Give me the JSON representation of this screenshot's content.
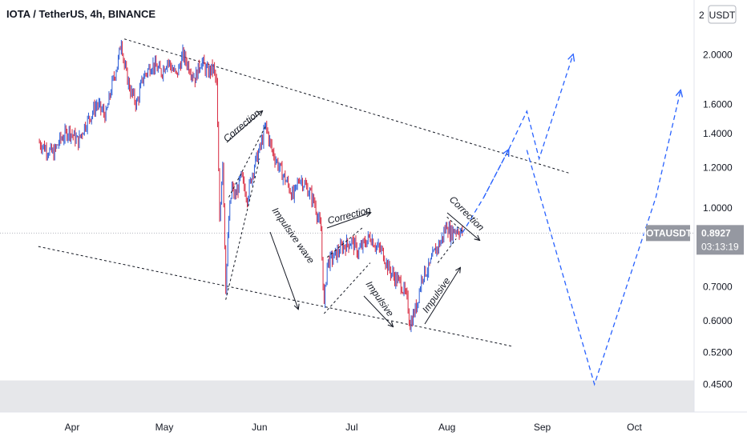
{
  "chart_data": {
    "type": "candlestick",
    "title": "IOTA / TetherUS, 4h, BINANCE",
    "currency": "USDT",
    "scale": "log",
    "ylim": [
      0.43,
      2.1
    ],
    "y_ticks": [
      {
        "value": 2.0,
        "label": "2.0000"
      },
      {
        "value": 1.6,
        "label": "1.6000"
      },
      {
        "value": 1.4,
        "label": "1.4000"
      },
      {
        "value": 1.2,
        "label": "1.2000"
      },
      {
        "value": 1.0,
        "label": "1.0000"
      },
      {
        "value": 0.7,
        "label": "0.7000"
      },
      {
        "value": 0.6,
        "label": "0.6000"
      },
      {
        "value": 0.52,
        "label": "0.5200"
      },
      {
        "value": 0.45,
        "label": "0.4500"
      }
    ],
    "x_ticks": [
      "Apr",
      "May",
      "Jun",
      "Jul",
      "Aug",
      "Sep",
      "Oct"
    ],
    "symbol": "IOTAUSDT",
    "last_price": "0.8927",
    "countdown": "03:13:19",
    "top_clipped_label": "2",
    "price_path": [
      [
        "Mar 21",
        1.35
      ],
      [
        "Mar 24",
        1.3
      ],
      [
        "Mar 26",
        1.28
      ],
      [
        "Mar 28",
        1.36
      ],
      [
        "Mar 31",
        1.42
      ],
      [
        "Apr 3",
        1.35
      ],
      [
        "Apr 5",
        1.45
      ],
      [
        "Apr 7",
        1.52
      ],
      [
        "Apr 9",
        1.6
      ],
      [
        "Apr 12",
        1.52
      ],
      [
        "Apr 14",
        1.75
      ],
      [
        "Apr 16",
        1.95
      ],
      [
        "Apr 17",
        2.15
      ],
      [
        "Apr 18",
        1.9
      ],
      [
        "Apr 20",
        1.7
      ],
      [
        "Apr 22",
        1.6
      ],
      [
        "Apr 24",
        1.8
      ],
      [
        "Apr 27",
        1.92
      ],
      [
        "Apr 30",
        1.85
      ],
      [
        "May 2",
        1.95
      ],
      [
        "May 5",
        1.82
      ],
      [
        "May 7",
        2.0
      ],
      [
        "May 9",
        1.9
      ],
      [
        "May 11",
        1.8
      ],
      [
        "May 13",
        1.95
      ],
      [
        "May 15",
        1.85
      ],
      [
        "May 17",
        1.88
      ],
      [
        "May 18",
        1.75
      ],
      [
        "May 19",
        0.95
      ],
      [
        "May 20",
        1.25
      ],
      [
        "May 21",
        0.7
      ],
      [
        "May 22",
        0.95
      ],
      [
        "May 23",
        1.1
      ],
      [
        "May 24",
        1.05
      ],
      [
        "May 26",
        1.15
      ],
      [
        "May 28",
        1.05
      ],
      [
        "May 30",
        1.2
      ],
      [
        "Jun 1",
        1.3
      ],
      [
        "Jun 3",
        1.45
      ],
      [
        "Jun 5",
        1.3
      ],
      [
        "Jun 8",
        1.18
      ],
      [
        "Jun 10",
        1.12
      ],
      [
        "Jun 12",
        1.05
      ],
      [
        "Jun 14",
        1.15
      ],
      [
        "Jun 17",
        1.08
      ],
      [
        "Jun 19",
        1.02
      ],
      [
        "Jun 21",
        0.9
      ],
      [
        "Jun 22",
        0.64
      ],
      [
        "Jun 23",
        0.78
      ],
      [
        "Jun 25",
        0.8
      ],
      [
        "Jun 28",
        0.84
      ],
      [
        "Jul 1",
        0.86
      ],
      [
        "Jul 3",
        0.82
      ],
      [
        "Jul 5",
        0.85
      ],
      [
        "Jul 7",
        0.88
      ],
      [
        "Jul 9",
        0.84
      ],
      [
        "Jul 11",
        0.82
      ],
      [
        "Jul 13",
        0.76
      ],
      [
        "Jul 15",
        0.73
      ],
      [
        "Jul 17",
        0.71
      ],
      [
        "Jul 19",
        0.66
      ],
      [
        "Jul 20",
        0.59
      ],
      [
        "Jul 22",
        0.64
      ],
      [
        "Jul 24",
        0.74
      ],
      [
        "Jul 26",
        0.76
      ],
      [
        "Jul 28",
        0.82
      ],
      [
        "Jul 30",
        0.86
      ],
      [
        "Aug 1",
        0.93
      ],
      [
        "Aug 2",
        0.89
      ],
      [
        "Aug 4",
        0.91
      ],
      [
        "Aug 6",
        0.8927
      ]
    ],
    "projection": [
      [
        "Aug 6",
        0.8927
      ],
      [
        "Aug 13",
        1.05
      ],
      [
        "Aug 21",
        1.3
      ],
      [
        "Aug 27",
        1.55
      ],
      [
        "Aug 31",
        1.25
      ],
      [
        "Sep 11",
        2.0
      ]
    ],
    "projection_alt": [
      [
        "Aug 27",
        1.3
      ],
      [
        "Sep 18",
        0.45
      ],
      [
        "Oct 8",
        1.05
      ],
      [
        "Oct 16",
        1.7
      ]
    ],
    "trendlines": [
      {
        "from": [
          "Apr 18",
          2.15
        ],
        "to": [
          "Sep 10",
          1.17
        ]
      },
      {
        "from": [
          "Mar 21",
          0.84
        ],
        "to": [
          "Aug 22",
          0.535
        ]
      }
    ],
    "annotations": [
      {
        "text": "Correction",
        "kind": "up"
      },
      {
        "text": "Impulsive wave",
        "kind": "down"
      },
      {
        "text": "Correction",
        "kind": "up"
      },
      {
        "text": "Impulsive",
        "kind": "down"
      },
      {
        "text": "Impulsive",
        "kind": "up"
      },
      {
        "text": "Correction",
        "kind": "down"
      }
    ],
    "colors": {
      "up": "#2a5bd7",
      "down": "#d7263d",
      "projection": "#2962ff",
      "price_tag": "#9598a1",
      "gridline": "#b2b5be",
      "band": "#e6e7ea"
    }
  }
}
